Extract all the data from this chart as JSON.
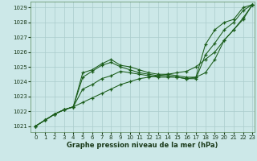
{
  "bg_color": "#cce8e8",
  "grid_color": "#aacccc",
  "line_color": "#1a5c1a",
  "xlabel": "Graphe pression niveau de la mer (hPa)",
  "xlim_min": -0.5,
  "xlim_max": 23.2,
  "ylim_min": 1020.6,
  "ylim_max": 1029.4,
  "yticks": [
    1021,
    1022,
    1023,
    1024,
    1025,
    1026,
    1027,
    1028,
    1029
  ],
  "xticks": [
    0,
    1,
    2,
    3,
    4,
    5,
    6,
    7,
    8,
    9,
    10,
    11,
    12,
    13,
    14,
    15,
    16,
    17,
    18,
    19,
    20,
    21,
    22,
    23
  ],
  "series": [
    [
      1021.0,
      1021.4,
      1021.8,
      1022.1,
      1022.3,
      1024.6,
      1024.8,
      1025.2,
      1025.5,
      1025.1,
      1025.0,
      1024.8,
      1024.6,
      1024.5,
      1024.5,
      1024.4,
      1024.3,
      1024.3,
      1026.5,
      1027.5,
      1028.0,
      1028.2,
      1029.0,
      1029.2
    ],
    [
      1021.0,
      1021.4,
      1021.8,
      1022.1,
      1022.3,
      1024.3,
      1024.7,
      1025.1,
      1025.3,
      1025.0,
      1024.8,
      1024.6,
      1024.5,
      1024.4,
      1024.4,
      1024.3,
      1024.2,
      1024.2,
      1025.8,
      1026.6,
      1027.5,
      1028.0,
      1028.8,
      1029.2
    ],
    [
      1021.0,
      1021.4,
      1021.8,
      1022.1,
      1022.3,
      1023.5,
      1023.8,
      1024.2,
      1024.4,
      1024.7,
      1024.6,
      1024.5,
      1024.4,
      1024.3,
      1024.3,
      1024.3,
      1024.2,
      1024.3,
      1024.6,
      1025.5,
      1026.8,
      1027.5,
      1028.3,
      1029.2
    ],
    [
      1021.0,
      1021.4,
      1021.8,
      1022.1,
      1022.3,
      1022.6,
      1022.9,
      1023.2,
      1023.5,
      1023.8,
      1024.0,
      1024.2,
      1024.3,
      1024.4,
      1024.5,
      1024.6,
      1024.7,
      1025.0,
      1025.5,
      1026.0,
      1026.8,
      1027.5,
      1028.2,
      1029.2
    ]
  ]
}
